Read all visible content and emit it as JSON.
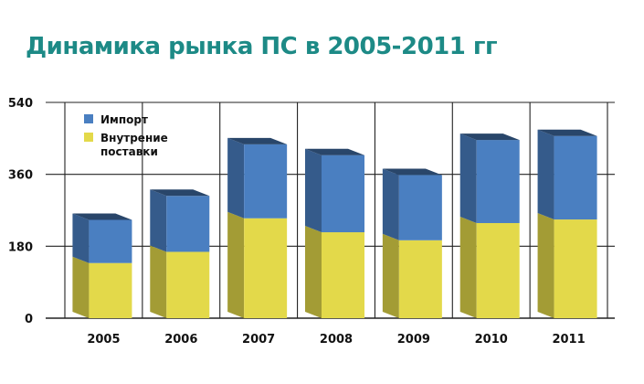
{
  "chart_data": {
    "type": "bar",
    "stacked": true,
    "title": "Динамика рынка ПС в 2005-2011 гг",
    "categories": [
      "2005",
      "2006",
      "2007",
      "2008",
      "2009",
      "2010",
      "2011"
    ],
    "series": [
      {
        "name": "Внутрение поставки",
        "color": "#e3d94a",
        "values": [
          138,
          166,
          250,
          215,
          195,
          238,
          247
        ]
      },
      {
        "name": "Импорт",
        "color": "#4a7fc1",
        "values": [
          108,
          140,
          185,
          193,
          163,
          208,
          209
        ]
      }
    ],
    "y_ticks": [
      "0",
      "180",
      "360",
      "540"
    ],
    "ylim": [
      0,
      540
    ],
    "grid": true,
    "legend_position": "top-left"
  },
  "legend": {
    "import_label": "Импорт",
    "domestic_label_line1": "Внутрение",
    "domestic_label_line2": "поставки"
  }
}
